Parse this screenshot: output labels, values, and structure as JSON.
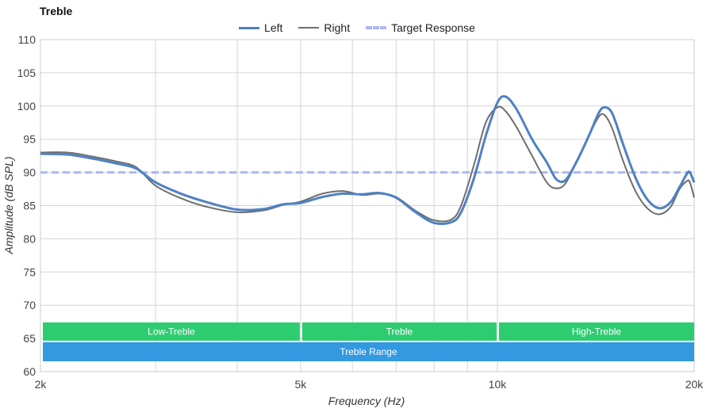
{
  "chart_data": {
    "type": "line",
    "title": "Treble",
    "xlabel": "Frequency (Hz)",
    "ylabel": "Amplitude (dB SPL)",
    "x_scale": "log",
    "xlim": [
      2000,
      20000
    ],
    "ylim": [
      60,
      110
    ],
    "y_ticks": [
      60,
      65,
      70,
      75,
      80,
      85,
      90,
      95,
      100,
      105,
      110
    ],
    "x_ticks": [
      {
        "value": 2000,
        "label": "2k"
      },
      {
        "value": 5000,
        "label": "5k"
      },
      {
        "value": 10000,
        "label": "10k"
      },
      {
        "value": 20000,
        "label": "20k"
      }
    ],
    "x_gridlines": [
      2000,
      3000,
      4000,
      5000,
      6000,
      7000,
      8000,
      9000,
      10000,
      20000
    ],
    "grid": true,
    "legend_position": "top-center",
    "series": [
      {
        "name": "Left",
        "color": "#4e81c4",
        "style": "solid",
        "points": [
          [
            2000,
            92.8
          ],
          [
            2200,
            92.7
          ],
          [
            2400,
            92.1
          ],
          [
            2600,
            91.4
          ],
          [
            2800,
            90.6
          ],
          [
            3000,
            88.5
          ],
          [
            3300,
            86.7
          ],
          [
            3600,
            85.5
          ],
          [
            4000,
            84.4
          ],
          [
            4400,
            84.5
          ],
          [
            4700,
            85.2
          ],
          [
            5000,
            85.4
          ],
          [
            5400,
            86.3
          ],
          [
            5800,
            86.8
          ],
          [
            6200,
            86.7
          ],
          [
            6600,
            86.9
          ],
          [
            7000,
            86.2
          ],
          [
            7500,
            84.0
          ],
          [
            8000,
            82.4
          ],
          [
            8500,
            82.5
          ],
          [
            8800,
            84.0
          ],
          [
            9200,
            89.0
          ],
          [
            9600,
            95.5
          ],
          [
            10000,
            100.5
          ],
          [
            10300,
            101.4
          ],
          [
            10700,
            99.5
          ],
          [
            11300,
            95.0
          ],
          [
            11900,
            91.5
          ],
          [
            12300,
            89.0
          ],
          [
            12700,
            88.8
          ],
          [
            13200,
            91.5
          ],
          [
            13800,
            95.5
          ],
          [
            14300,
            99.0
          ],
          [
            14600,
            99.8
          ],
          [
            15000,
            98.8
          ],
          [
            15600,
            94.0
          ],
          [
            16300,
            89.0
          ],
          [
            17000,
            85.8
          ],
          [
            17700,
            84.6
          ],
          [
            18400,
            85.5
          ],
          [
            19000,
            87.8
          ],
          [
            19500,
            89.8
          ],
          [
            19700,
            90.0
          ],
          [
            20000,
            88.5
          ]
        ]
      },
      {
        "name": "Right",
        "color": "#6e6e6e",
        "style": "solid",
        "points": [
          [
            2000,
            93.0
          ],
          [
            2200,
            93.0
          ],
          [
            2400,
            92.4
          ],
          [
            2600,
            91.7
          ],
          [
            2800,
            90.8
          ],
          [
            3000,
            88.0
          ],
          [
            3300,
            86.0
          ],
          [
            3600,
            84.8
          ],
          [
            4000,
            84.0
          ],
          [
            4400,
            84.3
          ],
          [
            4700,
            85.1
          ],
          [
            5000,
            85.6
          ],
          [
            5400,
            86.8
          ],
          [
            5800,
            87.2
          ],
          [
            6200,
            86.6
          ],
          [
            6600,
            86.8
          ],
          [
            7000,
            86.3
          ],
          [
            7500,
            84.2
          ],
          [
            8000,
            82.8
          ],
          [
            8500,
            82.9
          ],
          [
            8800,
            85.0
          ],
          [
            9200,
            91.0
          ],
          [
            9600,
            97.5
          ],
          [
            10000,
            99.8
          ],
          [
            10300,
            99.2
          ],
          [
            10700,
            96.8
          ],
          [
            11300,
            92.5
          ],
          [
            11900,
            88.5
          ],
          [
            12300,
            87.6
          ],
          [
            12700,
            88.3
          ],
          [
            13200,
            91.5
          ],
          [
            13800,
            95.5
          ],
          [
            14300,
            98.4
          ],
          [
            14600,
            98.6
          ],
          [
            15000,
            96.5
          ],
          [
            15600,
            91.5
          ],
          [
            16300,
            87.0
          ],
          [
            17000,
            84.5
          ],
          [
            17700,
            83.7
          ],
          [
            18400,
            84.8
          ],
          [
            19000,
            87.5
          ],
          [
            19500,
            88.7
          ],
          [
            19700,
            88.5
          ],
          [
            20000,
            86.2
          ]
        ]
      },
      {
        "name": "Target Response",
        "color": "#a9b9f2",
        "style": "dashed",
        "points": [
          [
            2000,
            90
          ],
          [
            20000,
            90
          ]
        ]
      }
    ],
    "ranges": [
      {
        "label": "Low-Treble",
        "from": 2000,
        "to": 5000,
        "color": "#2ecc71"
      },
      {
        "label": "Treble",
        "from": 5000,
        "to": 10000,
        "color": "#2ecc71"
      },
      {
        "label": "High-Treble",
        "from": 10000,
        "to": 20000,
        "color": "#2ecc71"
      },
      {
        "label": "Treble Range",
        "from": 2000,
        "to": 20000,
        "color": "#3399e0"
      }
    ],
    "colors": {
      "grid": "#d6d6d6",
      "frame": "#cccccc"
    }
  }
}
